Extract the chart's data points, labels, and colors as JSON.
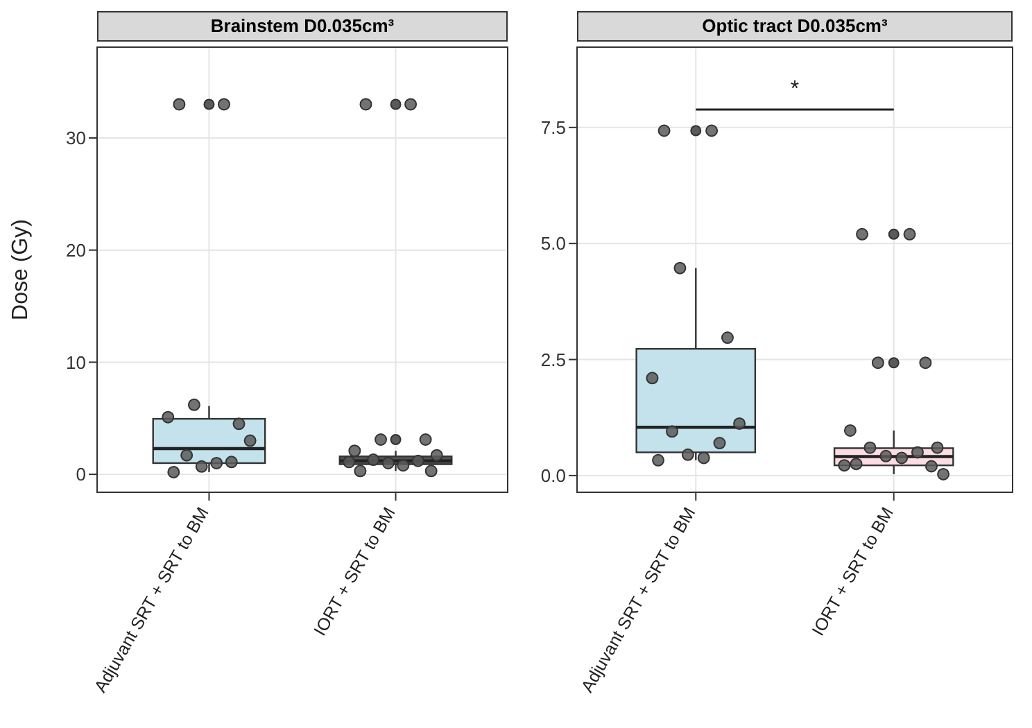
{
  "chart_data": [
    {
      "type": "box",
      "title": "Brainstem D0.035cm³",
      "ylabel": "Dose (Gy)",
      "categories": [
        "Adjuvant SRT + SRT to BM",
        "IORT + SRT to BM"
      ],
      "colors": [
        "#c3e2ec",
        "#555555"
      ],
      "boxes": [
        {
          "low": 0.2,
          "q1": 1.0,
          "median": 2.3,
          "q3": 4.95,
          "high": 6.1,
          "outliers": [
            33
          ]
        },
        {
          "low": 0.3,
          "q1": 0.9,
          "median": 1.2,
          "q3": 1.6,
          "high": 2.1,
          "outliers": [
            33,
            3.1
          ]
        }
      ],
      "series": [
        {
          "type": "scatter",
          "color": "#5a5a5a",
          "x": [
            "Adjuvant SRT + SRT to BM",
            "Adjuvant SRT + SRT to BM",
            "Adjuvant SRT + SRT to BM",
            "Adjuvant SRT + SRT to BM",
            "Adjuvant SRT + SRT to BM",
            "Adjuvant SRT + SRT to BM",
            "Adjuvant SRT + SRT to BM",
            "Adjuvant SRT + SRT to BM",
            "Adjuvant SRT + SRT to BM",
            "Adjuvant SRT + SRT to BM",
            "Adjuvant SRT + SRT to BM",
            "IORT + SRT to BM",
            "IORT + SRT to BM",
            "IORT + SRT to BM",
            "IORT + SRT to BM",
            "IORT + SRT to BM",
            "IORT + SRT to BM",
            "IORT + SRT to BM",
            "IORT + SRT to BM",
            "IORT + SRT to BM",
            "IORT + SRT to BM",
            "IORT + SRT to BM",
            "IORT + SRT to BM",
            "IORT + SRT to BM"
          ],
          "values": [
            33,
            33,
            6.2,
            4.5,
            5.1,
            3.0,
            1.7,
            1.1,
            0.7,
            1.0,
            0.2,
            33,
            33,
            3.1,
            3.1,
            2.1,
            1.7,
            1.3,
            1.2,
            1.0,
            0.8,
            0.3,
            0.3,
            1.1
          ]
        }
      ],
      "ylim": [
        -1.6,
        38.1
      ],
      "yticks": [
        0,
        10,
        20,
        30
      ],
      "grid": true,
      "marker": "circle"
    },
    {
      "type": "box",
      "title": "Optic tract D0.035cm³",
      "categories": [
        "Adjuvant SRT + SRT to BM",
        "IORT + SRT to BM"
      ],
      "colors": [
        "#c3e2ec",
        "#fbdde3"
      ],
      "boxes": [
        {
          "low": 0.33,
          "q1": 0.5,
          "median": 1.04,
          "q3": 2.73,
          "high": 4.47,
          "outliers": [
            7.43
          ]
        },
        {
          "low": 0.03,
          "q1": 0.22,
          "median": 0.41,
          "q3": 0.59,
          "high": 0.97,
          "outliers": [
            5.2,
            2.43
          ]
        }
      ],
      "series": [
        {
          "type": "scatter",
          "color": "#5a5a5a",
          "x": [
            "Adjuvant SRT + SRT to BM",
            "Adjuvant SRT + SRT to BM",
            "Adjuvant SRT + SRT to BM",
            "Adjuvant SRT + SRT to BM",
            "Adjuvant SRT + SRT to BM",
            "Adjuvant SRT + SRT to BM",
            "Adjuvant SRT + SRT to BM",
            "Adjuvant SRT + SRT to BM",
            "Adjuvant SRT + SRT to BM",
            "Adjuvant SRT + SRT to BM",
            "Adjuvant SRT + SRT to BM",
            "IORT + SRT to BM",
            "IORT + SRT to BM",
            "IORT + SRT to BM",
            "IORT + SRT to BM",
            "IORT + SRT to BM",
            "IORT + SRT to BM",
            "IORT + SRT to BM",
            "IORT + SRT to BM",
            "IORT + SRT to BM",
            "IORT + SRT to BM",
            "IORT + SRT to BM",
            "IORT + SRT to BM",
            "IORT + SRT to BM",
            "IORT + SRT to BM"
          ],
          "values": [
            7.43,
            7.43,
            4.47,
            2.97,
            2.1,
            1.12,
            0.95,
            0.7,
            0.45,
            0.38,
            0.33,
            5.2,
            5.2,
            2.43,
            2.43,
            0.97,
            0.6,
            0.6,
            0.5,
            0.42,
            0.38,
            0.25,
            0.2,
            0.22,
            0.03
          ]
        }
      ],
      "ylim": [
        -0.36,
        9.23
      ],
      "yticks": [
        {
          "value": 0,
          "label": "0.0"
        },
        {
          "value": 2.5,
          "label": "2.5"
        },
        {
          "value": 5,
          "label": "5.0"
        },
        {
          "value": 7.5,
          "label": "7.5"
        }
      ],
      "grid": true,
      "marker": "circle",
      "annotations": [
        "*"
      ]
    }
  ]
}
